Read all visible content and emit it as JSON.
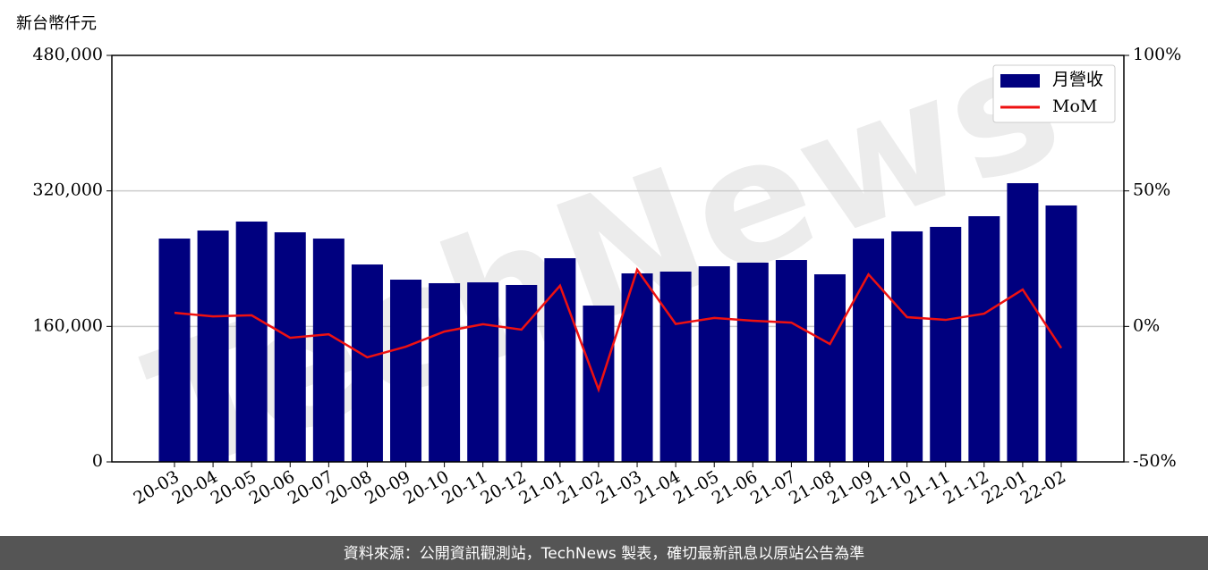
{
  "chart_data": {
    "type": "bar_line",
    "y_label": "新台幣仟元",
    "watermark": "TechNews",
    "source": "資料來源：公開資訊觀測站，TechNews 製表，確切最新訊息以原站公告為準",
    "categories": [
      "20-03",
      "20-04",
      "20-05",
      "20-06",
      "20-07",
      "20-08",
      "20-09",
      "20-10",
      "20-11",
      "20-12",
      "21-01",
      "21-02",
      "21-03",
      "21-04",
      "21-05",
      "21-06",
      "21-07",
      "21-08",
      "21-09",
      "21-10",
      "21-11",
      "21-12",
      "22-01",
      "22-02"
    ],
    "series": [
      {
        "name": "月營收",
        "color": "#00007f",
        "type": "bar",
        "values": [
          263700,
          273200,
          283800,
          271100,
          263700,
          233100,
          215200,
          211000,
          212000,
          208900,
          240500,
          184600,
          222600,
          224700,
          231000,
          235300,
          238400,
          221500,
          263700,
          272200,
          277500,
          290100,
          329100,
          302800
        ]
      },
      {
        "name": "MoM",
        "color": "#ee1111",
        "type": "line",
        "axis": "y2",
        "values": [
          5.0,
          3.7,
          4.1,
          -4.2,
          -2.9,
          -11.4,
          -7.5,
          -1.9,
          0.8,
          -1.2,
          15.0,
          -23.3,
          20.9,
          0.9,
          3.1,
          2.1,
          1.4,
          -6.5,
          19.2,
          3.4,
          2.4,
          4.7,
          13.6,
          -8.0
        ]
      }
    ],
    "ylim": [
      0,
      480000
    ],
    "yticks": [
      0,
      {
        "value": 160000,
        "label": "160,000"
      },
      {
        "value": 320000,
        "label": "320,000"
      },
      {
        "value": 480000,
        "label": "480,000"
      }
    ],
    "y2lim": [
      -50,
      100
    ],
    "y2ticks": [
      {
        "value": -50,
        "label": "-50%"
      },
      {
        "value": 0,
        "label": "0%"
      },
      {
        "value": 50,
        "label": "50%"
      },
      {
        "value": 100,
        "label": "100%"
      }
    ],
    "grid": true,
    "legend": "upper right"
  }
}
